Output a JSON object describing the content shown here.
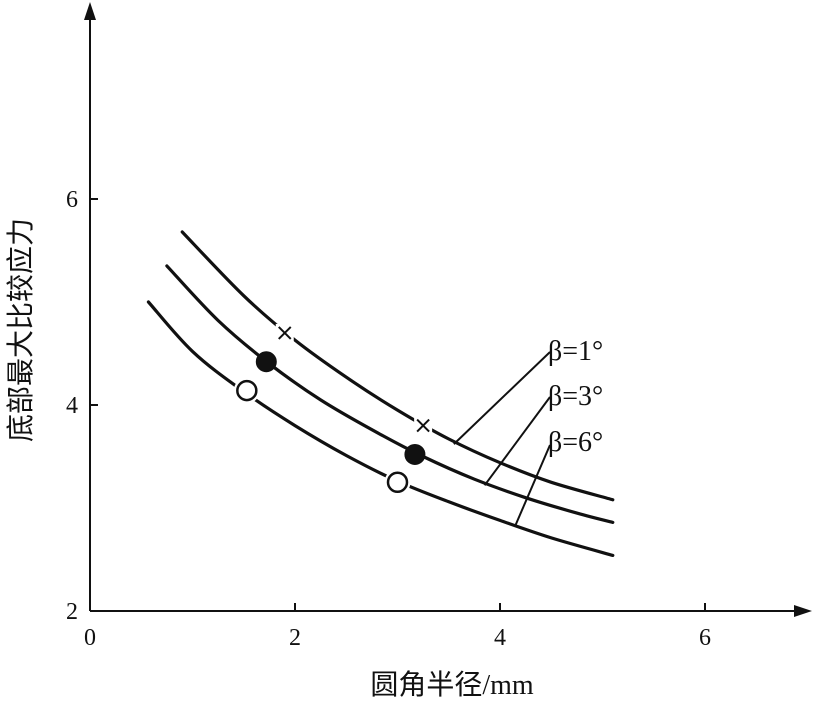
{
  "chart_data": {
    "type": "line",
    "title": "",
    "xlabel": "圆角半径/mm",
    "ylabel": "底部最大比较应力",
    "xlim": [
      0,
      7
    ],
    "ylim": [
      2,
      8
    ],
    "x_ticks": [
      "0",
      "2",
      "4",
      "6"
    ],
    "y_ticks": [
      "2",
      "4",
      "6"
    ],
    "grid": false,
    "series": [
      {
        "name": "β=1°",
        "marker": "x",
        "x": [
          0.9,
          1.5,
          2.0,
          2.5,
          3.0,
          3.5,
          4.0,
          4.5,
          5.1
        ],
        "y": [
          5.68,
          5.06,
          4.63,
          4.27,
          3.95,
          3.67,
          3.44,
          3.25,
          3.08
        ],
        "marked_points": [
          {
            "x": 1.9,
            "y": 4.7
          },
          {
            "x": 3.25,
            "y": 3.8
          }
        ]
      },
      {
        "name": "β=3°",
        "marker": "filled-circle",
        "x": [
          0.75,
          1.25,
          1.75,
          2.25,
          2.75,
          3.25,
          3.75,
          4.25,
          4.75,
          5.1
        ],
        "y": [
          5.35,
          4.82,
          4.4,
          4.05,
          3.76,
          3.5,
          3.28,
          3.1,
          2.95,
          2.86
        ],
        "marked_points": [
          {
            "x": 1.72,
            "y": 4.42
          },
          {
            "x": 3.17,
            "y": 3.52
          }
        ]
      },
      {
        "name": "β=6°",
        "marker": "open-circle",
        "x": [
          0.57,
          1.0,
          1.5,
          2.0,
          2.5,
          3.0,
          3.5,
          4.0,
          4.5,
          5.1
        ],
        "y": [
          5.0,
          4.52,
          4.13,
          3.8,
          3.51,
          3.26,
          3.06,
          2.88,
          2.71,
          2.54
        ],
        "marked_points": [
          {
            "x": 1.53,
            "y": 4.14
          },
          {
            "x": 3.0,
            "y": 3.25
          }
        ]
      }
    ],
    "annotations": [
      "β=1°",
      "β=3°",
      "β=6°"
    ]
  }
}
